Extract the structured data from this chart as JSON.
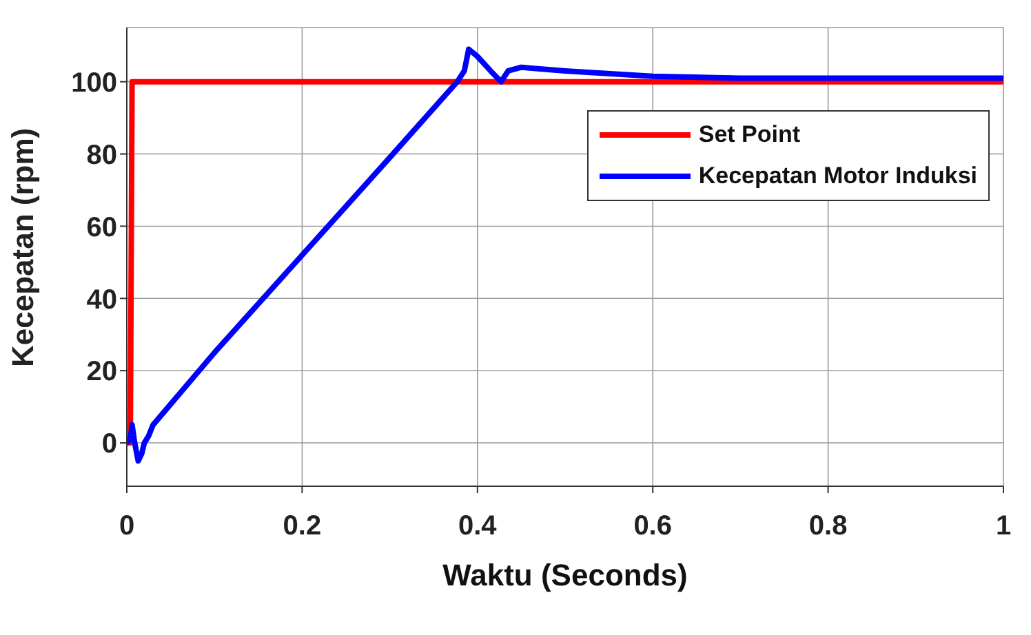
{
  "chart_data": {
    "type": "line",
    "xlabel": "Waktu (Seconds)",
    "ylabel": "Kecepatan (rpm)",
    "xlim": [
      0,
      1
    ],
    "ylim": [
      -12,
      115
    ],
    "xticks": [
      0,
      0.2,
      0.4,
      0.6,
      0.8,
      1
    ],
    "yticks": [
      0,
      20,
      40,
      60,
      80,
      100
    ],
    "grid": true,
    "legend": "top right",
    "marker": "none",
    "line_style": "solid",
    "series": [
      {
        "name": "Set Point",
        "color": "#ff0000",
        "x": [
          0,
          0.004,
          0.006,
          1
        ],
        "values": [
          0,
          0,
          100,
          100
        ]
      },
      {
        "name": "Kecepatan Motor Induksi",
        "color": "#0000ff",
        "x": [
          0,
          0.004,
          0.006,
          0.009,
          0.013,
          0.017,
          0.02,
          0.025,
          0.03,
          0.1,
          0.2,
          0.3,
          0.377,
          0.385,
          0.39,
          0.4,
          0.415,
          0.427,
          0.435,
          0.45,
          0.5,
          0.6,
          0.7,
          0.8,
          0.9,
          1
        ],
        "values": [
          0,
          1,
          5,
          0,
          -5,
          -3,
          0,
          2,
          5,
          25,
          52,
          79,
          100,
          103,
          109,
          107,
          103,
          100,
          103,
          104,
          103,
          101.5,
          101,
          101,
          101,
          101
        ]
      }
    ]
  }
}
